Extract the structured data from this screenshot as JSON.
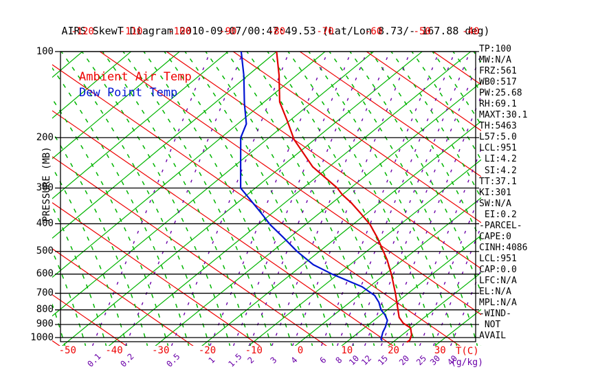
{
  "title": "AIRS SkewT Diagram 2010-09-07/00:47:49.53 (Lat/Lon 8.73/- 167.88 deg)",
  "legend": {
    "ambient": "Ambient Air Temp",
    "dewpoint": "Dew Point Temp"
  },
  "axes": {
    "pressure_label": "PRESSURE (MB)",
    "pressure_ticks": [
      "100",
      "200",
      "300",
      "400",
      "500",
      "600",
      "700",
      "800",
      "900",
      "1000"
    ],
    "top_temp_ticks": [
      "-120",
      "-110",
      "-100",
      "-90",
      "-80",
      "-70",
      "-60",
      "-50",
      "-40"
    ],
    "bottom_temp_ticks": [
      "-50",
      "-40",
      "-30",
      "-20",
      "-10",
      "0",
      "10",
      "20",
      "30"
    ],
    "temp_unit": "T(C)",
    "mixing_ratio_ticks": [
      "0.1",
      "0.2",
      "0.5",
      "1",
      "1.5",
      "2",
      "3",
      "4",
      "6",
      "8",
      "10",
      "12",
      "15",
      "20",
      "25",
      "30",
      "40"
    ],
    "mixing_ratio_unit": "(g/kg)"
  },
  "parameters": [
    "TP:100",
    "MW:N/A",
    "FRZ:561",
    "WB0:517",
    "PW:25.68",
    "RH:69.1",
    "MAXT:30.1",
    "TH:5463",
    "L57:5.0",
    "LCL:951",
    " LI:4.2",
    " SI:4.2",
    "TT:37.1",
    "KI:301",
    "SW:N/A",
    " EI:0.2",
    "-PARCEL-",
    "CAPE:0",
    "CINH:4086",
    "LCL:951",
    "CAP:0.0",
    "LFC:N/A",
    "EL:N/A",
    "MPL:N/A",
    "-WIND-",
    " NOT",
    "AVAIL"
  ],
  "colors": {
    "temperature_line": "#e00000",
    "dewpoint_line": "#0014d2",
    "isotherms_green": "#00b400",
    "moist_adiabats_green": "#00b400",
    "dry_adiabats_red": "#ee0000",
    "mixing_ratio_purple": "#6a00a8",
    "frame_black": "#000000",
    "temp_tick_red": "#ee0000"
  },
  "chart_data": {
    "type": "line",
    "title": "AIRS SkewT Diagram 2010-09-07/00:47:49.53 (Lat/Lon 8.73/- 167.88 deg)",
    "x_axis": {
      "label": "T(C)",
      "skewed": true,
      "bottom_tick_range_c": [
        -50,
        30
      ],
      "top_tick_range_c": [
        -120,
        -40
      ]
    },
    "y_axis": {
      "label": "PRESSURE (MB)",
      "scale": "log",
      "ticks_mb": [
        100,
        200,
        300,
        400,
        500,
        600,
        700,
        800,
        900,
        1000
      ]
    },
    "grid": {
      "isotherm_step_c": 10,
      "mixing_ratio_lines_g_kg": [
        0.1,
        0.2,
        0.5,
        1,
        1.5,
        2,
        3,
        4,
        6,
        8,
        10,
        12,
        15,
        20,
        25,
        30,
        40
      ]
    },
    "series": [
      {
        "name": "Ambient Air Temp",
        "units": {
          "p": "mb",
          "t": "C"
        },
        "points_p_t": [
          [
            100,
            -80
          ],
          [
            121,
            -73.6
          ],
          [
            150,
            -66.8
          ],
          [
            174,
            -60.6
          ],
          [
            203,
            -54.3
          ],
          [
            253,
            -43.4
          ],
          [
            300,
            -32.8
          ],
          [
            316,
            -30.1
          ],
          [
            338,
            -26.0
          ],
          [
            371,
            -20.8
          ],
          [
            403,
            -16.3
          ],
          [
            450,
            -11.1
          ],
          [
            535,
            -3.4
          ],
          [
            600,
            1.3
          ],
          [
            700,
            7.3
          ],
          [
            806,
            12.6
          ],
          [
            850,
            14.6
          ],
          [
            890,
            17.0
          ],
          [
            925,
            19.9
          ],
          [
            978,
            22.0
          ],
          [
            1022,
            23.1
          ],
          [
            1035,
            23.0
          ]
        ]
      },
      {
        "name": "Dew Point Temp",
        "units": {
          "p": "mb",
          "t": "C"
        },
        "points_p_t": [
          [
            100,
            -87.3
          ],
          [
            121,
            -80.9
          ],
          [
            152,
            -73.7
          ],
          [
            179,
            -68.2
          ],
          [
            200,
            -65.9
          ],
          [
            249,
            -59.0
          ],
          [
            300,
            -53.1
          ],
          [
            363,
            -42.9
          ],
          [
            403,
            -37.4
          ],
          [
            446,
            -31.4
          ],
          [
            500,
            -24.7
          ],
          [
            556,
            -17.8
          ],
          [
            600,
            -11.3
          ],
          [
            664,
            -1.6
          ],
          [
            713,
            3.5
          ],
          [
            753,
            6.2
          ],
          [
            800,
            8.7
          ],
          [
            833,
            10.9
          ],
          [
            871,
            12.9
          ],
          [
            920,
            14.3
          ],
          [
            957,
            15.1
          ],
          [
            1012,
            16.6
          ],
          [
            1022,
            17.1
          ]
        ]
      }
    ],
    "annotations": {
      "wind_status": [
        "-WIND-",
        "NOT",
        "AVAIL"
      ]
    }
  }
}
